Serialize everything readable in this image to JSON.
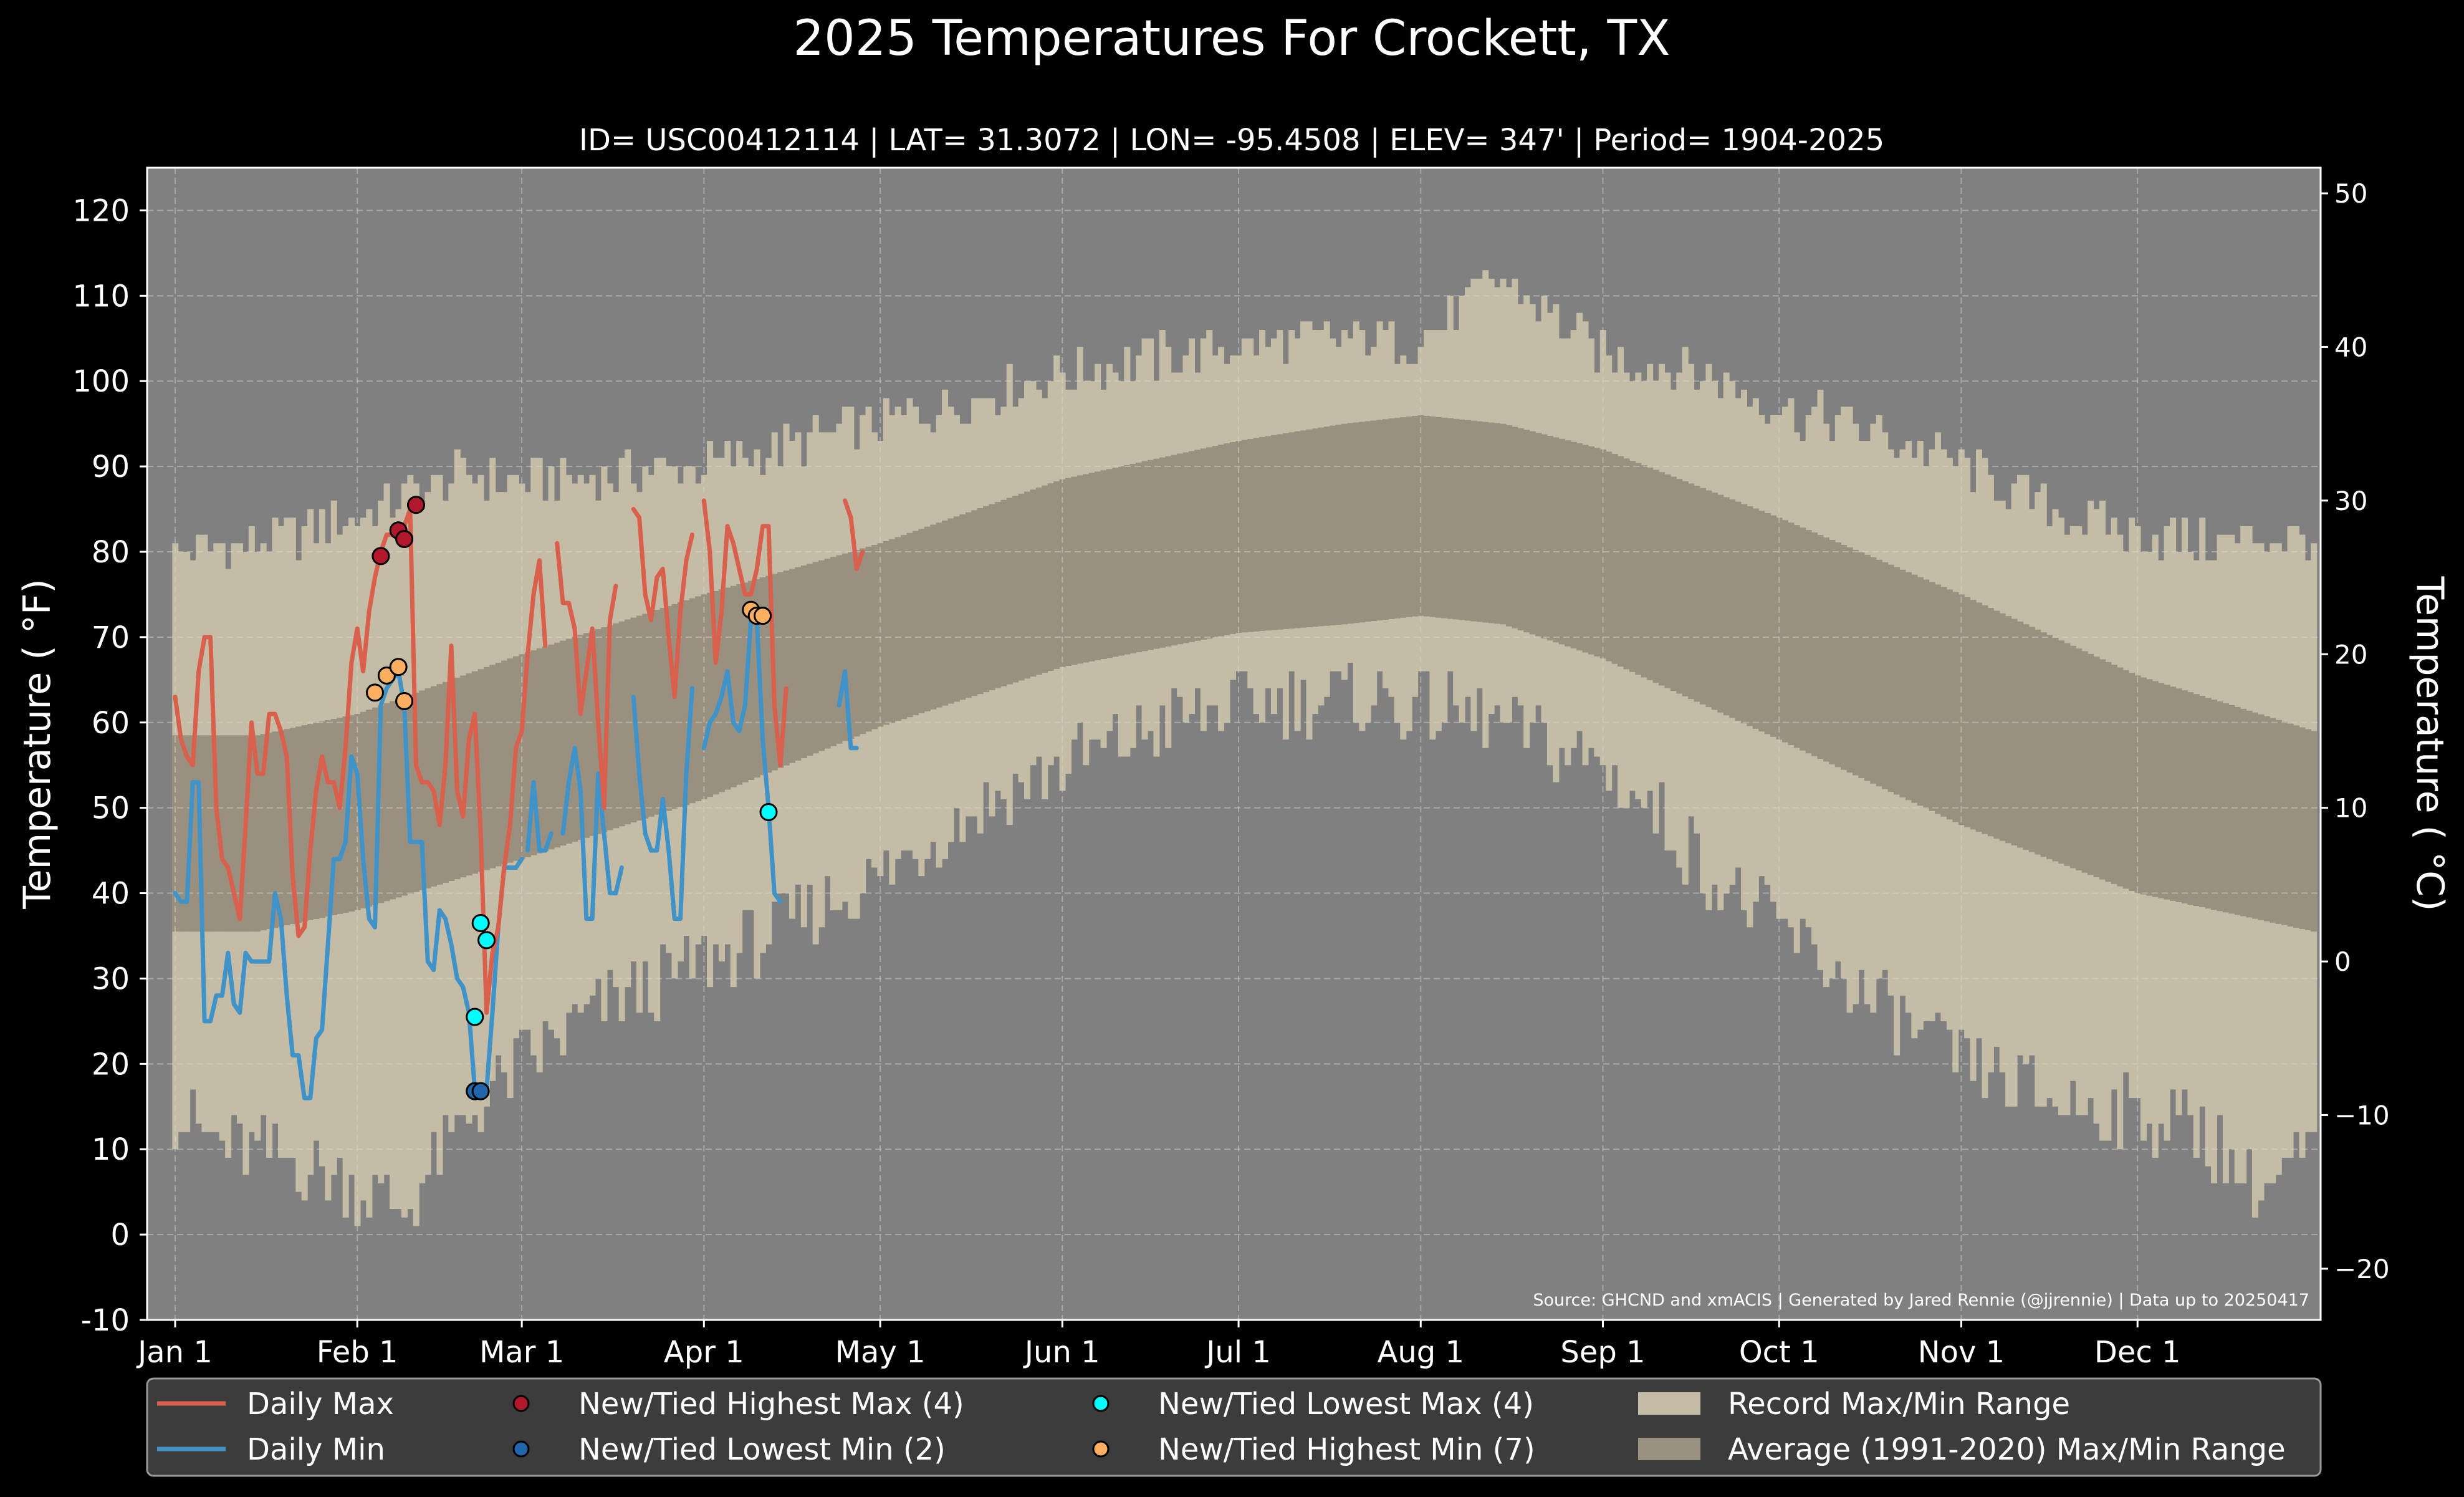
{
  "chart_data": {
    "type": "line",
    "title": "2025 Temperatures For Crockett, TX",
    "subtitle": "ID= USC00412114 | LAT= 31.3072 | LON= -95.4508 | ELEV= 347' | Period= 1904-2025",
    "ylabel_left": "Temperature ( °F)",
    "ylabel_right": "Temperature ( °C)",
    "source_note": "Source: GHCND and xmACIS | Generated by Jared Rennie (@jjrennie) | Data up to 20250417",
    "x_range_days": [
      1,
      365
    ],
    "ylim_f": [
      -10,
      125
    ],
    "yticks_f": [
      "-10",
      "0",
      "10",
      "20",
      "30",
      "40",
      "50",
      "60",
      "70",
      "80",
      "90",
      "100",
      "110",
      "120"
    ],
    "yticks_c": [
      "−20",
      "−10",
      "0",
      "10",
      "20",
      "30",
      "40",
      "50"
    ],
    "month_ticks": [
      {
        "label": "Jan 1",
        "day": 1
      },
      {
        "label": "Feb 1",
        "day": 32
      },
      {
        "label": "Mar 1",
        "day": 60
      },
      {
        "label": "Apr 1",
        "day": 91
      },
      {
        "label": "May 1",
        "day": 121
      },
      {
        "label": "Jun 1",
        "day": 152
      },
      {
        "label": "Jul 1",
        "day": 182
      },
      {
        "label": "Aug 1",
        "day": 213
      },
      {
        "label": "Sep 1",
        "day": 244
      },
      {
        "label": "Oct 1",
        "day": 274
      },
      {
        "label": "Nov 1",
        "day": 305
      },
      {
        "label": "Dec 1",
        "day": 335
      }
    ],
    "grid": true,
    "legend_position": "bottom",
    "legend": [
      {
        "label": "Daily Max",
        "kind": "line",
        "color": "#d9604c"
      },
      {
        "label": "Daily Min",
        "kind": "line",
        "color": "#3f93c8"
      },
      {
        "label": "New/Tied Highest Max (4)",
        "kind": "dot",
        "color": "#b2182b"
      },
      {
        "label": "New/Tied Lowest Min (2)",
        "kind": "dot",
        "color": "#2166ac"
      },
      {
        "label": "New/Tied Lowest Max (4)",
        "kind": "dot",
        "color": "#00ffff"
      },
      {
        "label": "New/Tied Highest Min (7)",
        "kind": "dot",
        "color": "#fdae61"
      },
      {
        "label": "Record Max/Min Range",
        "kind": "box",
        "color": "#c4bca4"
      },
      {
        "label": "Average (1991-2020) Max/Min Range",
        "kind": "box",
        "color": "#9a9080"
      }
    ],
    "colors": {
      "background": "#000000",
      "plot_bg": "#808080",
      "record_range": "#c4bca4",
      "normal_range": "#9a9080",
      "daily_max": "#d9604c",
      "daily_min": "#3f93c8"
    },
    "record_max_anchors": [
      [
        1,
        80
      ],
      [
        15,
        81
      ],
      [
        32,
        84
      ],
      [
        50,
        89
      ],
      [
        60,
        88
      ],
      [
        91,
        90
      ],
      [
        121,
        95
      ],
      [
        152,
        101
      ],
      [
        182,
        104
      ],
      [
        200,
        105
      ],
      [
        213,
        105
      ],
      [
        227,
        112
      ],
      [
        244,
        103
      ],
      [
        260,
        101
      ],
      [
        274,
        97
      ],
      [
        290,
        94
      ],
      [
        305,
        90
      ],
      [
        320,
        85
      ],
      [
        335,
        82
      ],
      [
        350,
        81
      ],
      [
        365,
        82
      ]
    ],
    "record_min_anchors": [
      [
        1,
        14
      ],
      [
        10,
        10
      ],
      [
        20,
        9
      ],
      [
        31,
        6
      ],
      [
        40,
        3
      ],
      [
        50,
        13
      ],
      [
        60,
        20
      ],
      [
        75,
        27
      ],
      [
        91,
        32
      ],
      [
        105,
        36
      ],
      [
        121,
        42
      ],
      [
        135,
        49
      ],
      [
        152,
        55
      ],
      [
        170,
        60
      ],
      [
        182,
        62
      ],
      [
        200,
        63
      ],
      [
        213,
        62
      ],
      [
        225,
        60
      ],
      [
        244,
        55
      ],
      [
        255,
        48
      ],
      [
        264,
        41
      ],
      [
        274,
        36
      ],
      [
        290,
        27
      ],
      [
        305,
        20
      ],
      [
        320,
        16
      ],
      [
        335,
        14
      ],
      [
        345,
        13
      ],
      [
        356,
        5
      ],
      [
        365,
        10
      ]
    ],
    "normal_max_anchors": [
      [
        1,
        58.5
      ],
      [
        15,
        58.5
      ],
      [
        32,
        61
      ],
      [
        60,
        68
      ],
      [
        91,
        75
      ],
      [
        121,
        81
      ],
      [
        152,
        88.5
      ],
      [
        182,
        93
      ],
      [
        200,
        95
      ],
      [
        213,
        96
      ],
      [
        227,
        95
      ],
      [
        244,
        92
      ],
      [
        274,
        84
      ],
      [
        305,
        75
      ],
      [
        335,
        65.5
      ],
      [
        365,
        59
      ]
    ],
    "normal_min_anchors": [
      [
        1,
        35.5
      ],
      [
        15,
        35.5
      ],
      [
        32,
        38
      ],
      [
        60,
        44
      ],
      [
        91,
        51
      ],
      [
        121,
        59.5
      ],
      [
        152,
        66.5
      ],
      [
        182,
        70.5
      ],
      [
        200,
        71.5
      ],
      [
        213,
        72.5
      ],
      [
        227,
        71.5
      ],
      [
        244,
        67.5
      ],
      [
        274,
        58
      ],
      [
        305,
        48
      ],
      [
        335,
        40
      ],
      [
        365,
        35.5
      ]
    ],
    "daily_max_segments": [
      [
        [
          1,
          63
        ],
        [
          2,
          58
        ],
        [
          3,
          56
        ],
        [
          4,
          55
        ],
        [
          5,
          66
        ],
        [
          6,
          70
        ],
        [
          7,
          70
        ],
        [
          8,
          50
        ],
        [
          9,
          44
        ],
        [
          10,
          43
        ],
        [
          11,
          40
        ],
        [
          12,
          37
        ],
        [
          13,
          48
        ],
        [
          14,
          60
        ],
        [
          15,
          54
        ],
        [
          16,
          54
        ],
        [
          17,
          61
        ],
        [
          18,
          61
        ],
        [
          19,
          59
        ],
        [
          20,
          56
        ],
        [
          21,
          42
        ],
        [
          22,
          35
        ],
        [
          23,
          36
        ],
        [
          24,
          45
        ],
        [
          25,
          52
        ],
        [
          26,
          56
        ],
        [
          27,
          53
        ],
        [
          28,
          53
        ],
        [
          29,
          50
        ],
        [
          30,
          57
        ],
        [
          31,
          67
        ],
        [
          32,
          71
        ],
        [
          33,
          66
        ],
        [
          34,
          73
        ],
        [
          35,
          77
        ],
        [
          36,
          80
        ],
        [
          37,
          82
        ],
        [
          38,
          82
        ],
        [
          39,
          82
        ],
        [
          40,
          83
        ],
        [
          41,
          85
        ],
        [
          42,
          55
        ],
        [
          43,
          53
        ],
        [
          44,
          53
        ],
        [
          45,
          52
        ],
        [
          46,
          48
        ],
        [
          47,
          55
        ],
        [
          48,
          69
        ],
        [
          49,
          52
        ],
        [
          50,
          49
        ],
        [
          51,
          58
        ],
        [
          52,
          61
        ],
        [
          53,
          47
        ],
        [
          54,
          26
        ],
        [
          55,
          33
        ],
        [
          56,
          36
        ],
        [
          57,
          43
        ],
        [
          58,
          48
        ],
        [
          59,
          57
        ],
        [
          60,
          59
        ],
        [
          61,
          68
        ],
        [
          62,
          75
        ],
        [
          63,
          79
        ],
        [
          64,
          69
        ]
      ],
      [
        [
          66,
          81
        ],
        [
          67,
          74
        ],
        [
          68,
          74
        ],
        [
          69,
          71
        ],
        [
          70,
          61
        ],
        [
          71,
          66
        ],
        [
          72,
          71
        ],
        [
          73,
          60
        ],
        [
          74,
          50
        ],
        [
          75,
          72
        ],
        [
          76,
          76
        ]
      ],
      [
        [
          79,
          85
        ],
        [
          80,
          84
        ],
        [
          81,
          75
        ],
        [
          82,
          72
        ],
        [
          83,
          77
        ],
        [
          84,
          78
        ],
        [
          85,
          70
        ],
        [
          86,
          63
        ],
        [
          87,
          73
        ],
        [
          88,
          79
        ],
        [
          89,
          82
        ]
      ],
      [
        [
          91,
          86
        ],
        [
          92,
          80
        ],
        [
          93,
          67
        ],
        [
          94,
          73
        ],
        [
          95,
          83
        ],
        [
          96,
          81
        ],
        [
          97,
          78
        ],
        [
          98,
          75
        ],
        [
          99,
          75
        ],
        [
          100,
          78
        ],
        [
          101,
          83
        ],
        [
          102,
          83
        ],
        [
          103,
          62
        ],
        [
          104,
          55
        ],
        [
          105,
          64
        ]
      ],
      [
        [
          115,
          86
        ],
        [
          116,
          84
        ],
        [
          117,
          78
        ],
        [
          118,
          80
        ]
      ]
    ],
    "daily_min_segments": [
      [
        [
          1,
          40
        ],
        [
          2,
          39
        ],
        [
          3,
          39
        ],
        [
          4,
          53
        ],
        [
          5,
          53
        ],
        [
          6,
          25
        ],
        [
          7,
          25
        ],
        [
          8,
          28
        ],
        [
          9,
          28
        ],
        [
          10,
          33
        ],
        [
          11,
          27
        ],
        [
          12,
          26
        ],
        [
          13,
          33
        ],
        [
          14,
          32
        ],
        [
          15,
          32
        ],
        [
          16,
          32
        ],
        [
          17,
          32
        ],
        [
          18,
          40
        ],
        [
          19,
          37
        ],
        [
          20,
          28
        ],
        [
          21,
          21
        ],
        [
          22,
          21
        ],
        [
          23,
          16
        ],
        [
          24,
          16
        ],
        [
          25,
          23
        ],
        [
          26,
          24
        ],
        [
          27,
          34
        ],
        [
          28,
          44
        ],
        [
          29,
          44
        ],
        [
          30,
          46
        ],
        [
          31,
          56
        ],
        [
          32,
          54
        ],
        [
          33,
          44
        ],
        [
          34,
          37
        ],
        [
          35,
          36
        ],
        [
          36,
          62
        ],
        [
          37,
          64
        ],
        [
          38,
          65
        ],
        [
          39,
          66
        ],
        [
          40,
          62
        ],
        [
          41,
          46
        ],
        [
          42,
          46
        ],
        [
          43,
          46
        ],
        [
          44,
          32
        ],
        [
          45,
          31
        ],
        [
          46,
          38
        ],
        [
          47,
          37
        ],
        [
          48,
          34
        ],
        [
          49,
          30
        ],
        [
          50,
          29
        ],
        [
          51,
          26
        ],
        [
          52,
          17
        ],
        [
          53,
          17
        ],
        [
          54,
          17
        ],
        [
          55,
          26
        ],
        [
          56,
          36
        ],
        [
          57,
          43
        ],
        [
          58,
          43
        ],
        [
          59,
          43
        ],
        [
          60,
          44
        ]
      ],
      [
        [
          61,
          45
        ],
        [
          62,
          53
        ],
        [
          63,
          45
        ],
        [
          64,
          45
        ],
        [
          65,
          47
        ]
      ],
      [
        [
          67,
          47
        ],
        [
          68,
          53
        ],
        [
          69,
          57
        ],
        [
          70,
          52
        ],
        [
          71,
          37
        ],
        [
          72,
          37
        ],
        [
          73,
          54
        ],
        [
          74,
          47
        ],
        [
          75,
          40
        ],
        [
          76,
          40
        ],
        [
          77,
          43
        ]
      ],
      [
        [
          79,
          63
        ],
        [
          80,
          54
        ],
        [
          81,
          47
        ],
        [
          82,
          45
        ],
        [
          83,
          45
        ],
        [
          84,
          51
        ],
        [
          85,
          45
        ],
        [
          86,
          37
        ],
        [
          87,
          37
        ],
        [
          88,
          54
        ],
        [
          89,
          64
        ]
      ],
      [
        [
          91,
          57
        ],
        [
          92,
          60
        ],
        [
          93,
          61
        ],
        [
          94,
          63
        ],
        [
          95,
          66
        ],
        [
          96,
          60
        ],
        [
          97,
          59
        ],
        [
          98,
          62
        ],
        [
          99,
          72
        ],
        [
          100,
          72
        ],
        [
          101,
          58
        ],
        [
          102,
          50
        ],
        [
          103,
          40
        ],
        [
          104,
          39
        ]
      ],
      [
        [
          114,
          62
        ],
        [
          115,
          66
        ],
        [
          116,
          57
        ],
        [
          117,
          57
        ]
      ]
    ],
    "marker_series": [
      {
        "name": "New/Tied Highest Max (4)",
        "color": "#b2182b",
        "points": [
          [
            36,
            79.5
          ],
          [
            39,
            82.5
          ],
          [
            40,
            81.5
          ],
          [
            42,
            85.5
          ]
        ]
      },
      {
        "name": "New/Tied Lowest Min (2)",
        "color": "#2166ac",
        "points": [
          [
            52,
            16.8
          ],
          [
            53,
            16.8
          ]
        ]
      },
      {
        "name": "New/Tied Lowest Max (4)",
        "color": "#00ffff",
        "points": [
          [
            52,
            25.5
          ],
          [
            53,
            36.5
          ],
          [
            54,
            34.5
          ],
          [
            102,
            49.5
          ]
        ]
      },
      {
        "name": "New/Tied Highest Min (7)",
        "color": "#fdae61",
        "points": [
          [
            35,
            63.5
          ],
          [
            37,
            65.5
          ],
          [
            39,
            66.5
          ],
          [
            40,
            62.5
          ],
          [
            99,
            73.2
          ],
          [
            100,
            72.5
          ],
          [
            101,
            72.5
          ]
        ]
      }
    ]
  }
}
